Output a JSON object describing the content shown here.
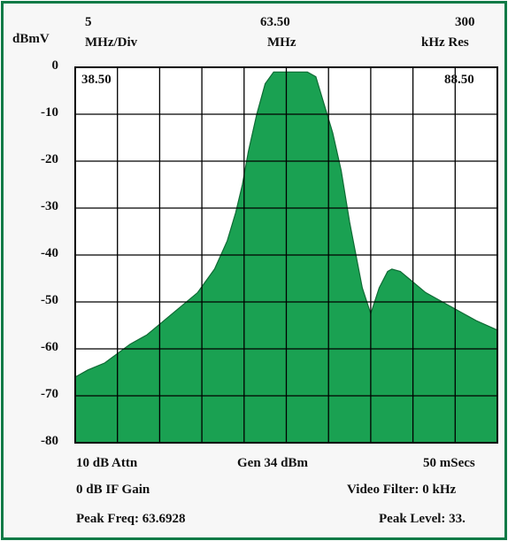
{
  "header": {
    "unit": "dBmV",
    "span_value": "5",
    "span_unit": "MHz/Div",
    "center_value": "63.50",
    "center_unit": "MHz",
    "res_value": "300",
    "res_unit": "kHz Res"
  },
  "plot_labels": {
    "start_freq": "38.50",
    "stop_freq": "88.50"
  },
  "footer": {
    "attenuation": "10 dB Attn",
    "generator": "Gen 34 dBm",
    "sweep_time": "50 mSecs",
    "if_gain": "0 dB IF Gain",
    "video_filter": "Video Filter: 0 kHz",
    "peak_freq": "Peak Freq: 63.6928",
    "peak_level": "Peak Level: 33."
  },
  "colors": {
    "fill": "#1aa152",
    "grid": "#000000",
    "frame": "#0e7a46",
    "plot_bg": "#ffffff"
  },
  "chart_data": {
    "type": "area",
    "xlim": [
      38.5,
      88.5
    ],
    "ylim": [
      -80,
      0
    ],
    "x_unit": "MHz",
    "y_unit": "dBmV",
    "ytick_labels": [
      "0",
      "-10",
      "-20",
      "-30",
      "-40",
      "-50",
      "-60",
      "-70",
      "-80"
    ],
    "grid": true,
    "x_divisions": 10,
    "y_divisions": 8,
    "series": [
      {
        "x": [
          38.5,
          40,
          42,
          43.5,
          45,
          47,
          49,
          51,
          53,
          55,
          56.5,
          57.5,
          58.3,
          59,
          60,
          61,
          62,
          63,
          64,
          65,
          66,
          67,
          68,
          69,
          70,
          71,
          72.5,
          73.5,
          74.5,
          75.5,
          76,
          77,
          78,
          79,
          80,
          82,
          84,
          86,
          88.5
        ],
        "y": [
          -66,
          -64.5,
          -63,
          -61,
          -59,
          -57,
          -54,
          -51,
          -48,
          -43,
          -37,
          -31,
          -25,
          -18,
          -10,
          -3.5,
          -1,
          -1,
          -1,
          -1,
          -1,
          -2,
          -8,
          -14,
          -22,
          -33,
          -47,
          -52.5,
          -47,
          -43.5,
          -43,
          -43.5,
          -45,
          -46.5,
          -48,
          -50,
          -52,
          -54,
          -56
        ]
      }
    ]
  }
}
